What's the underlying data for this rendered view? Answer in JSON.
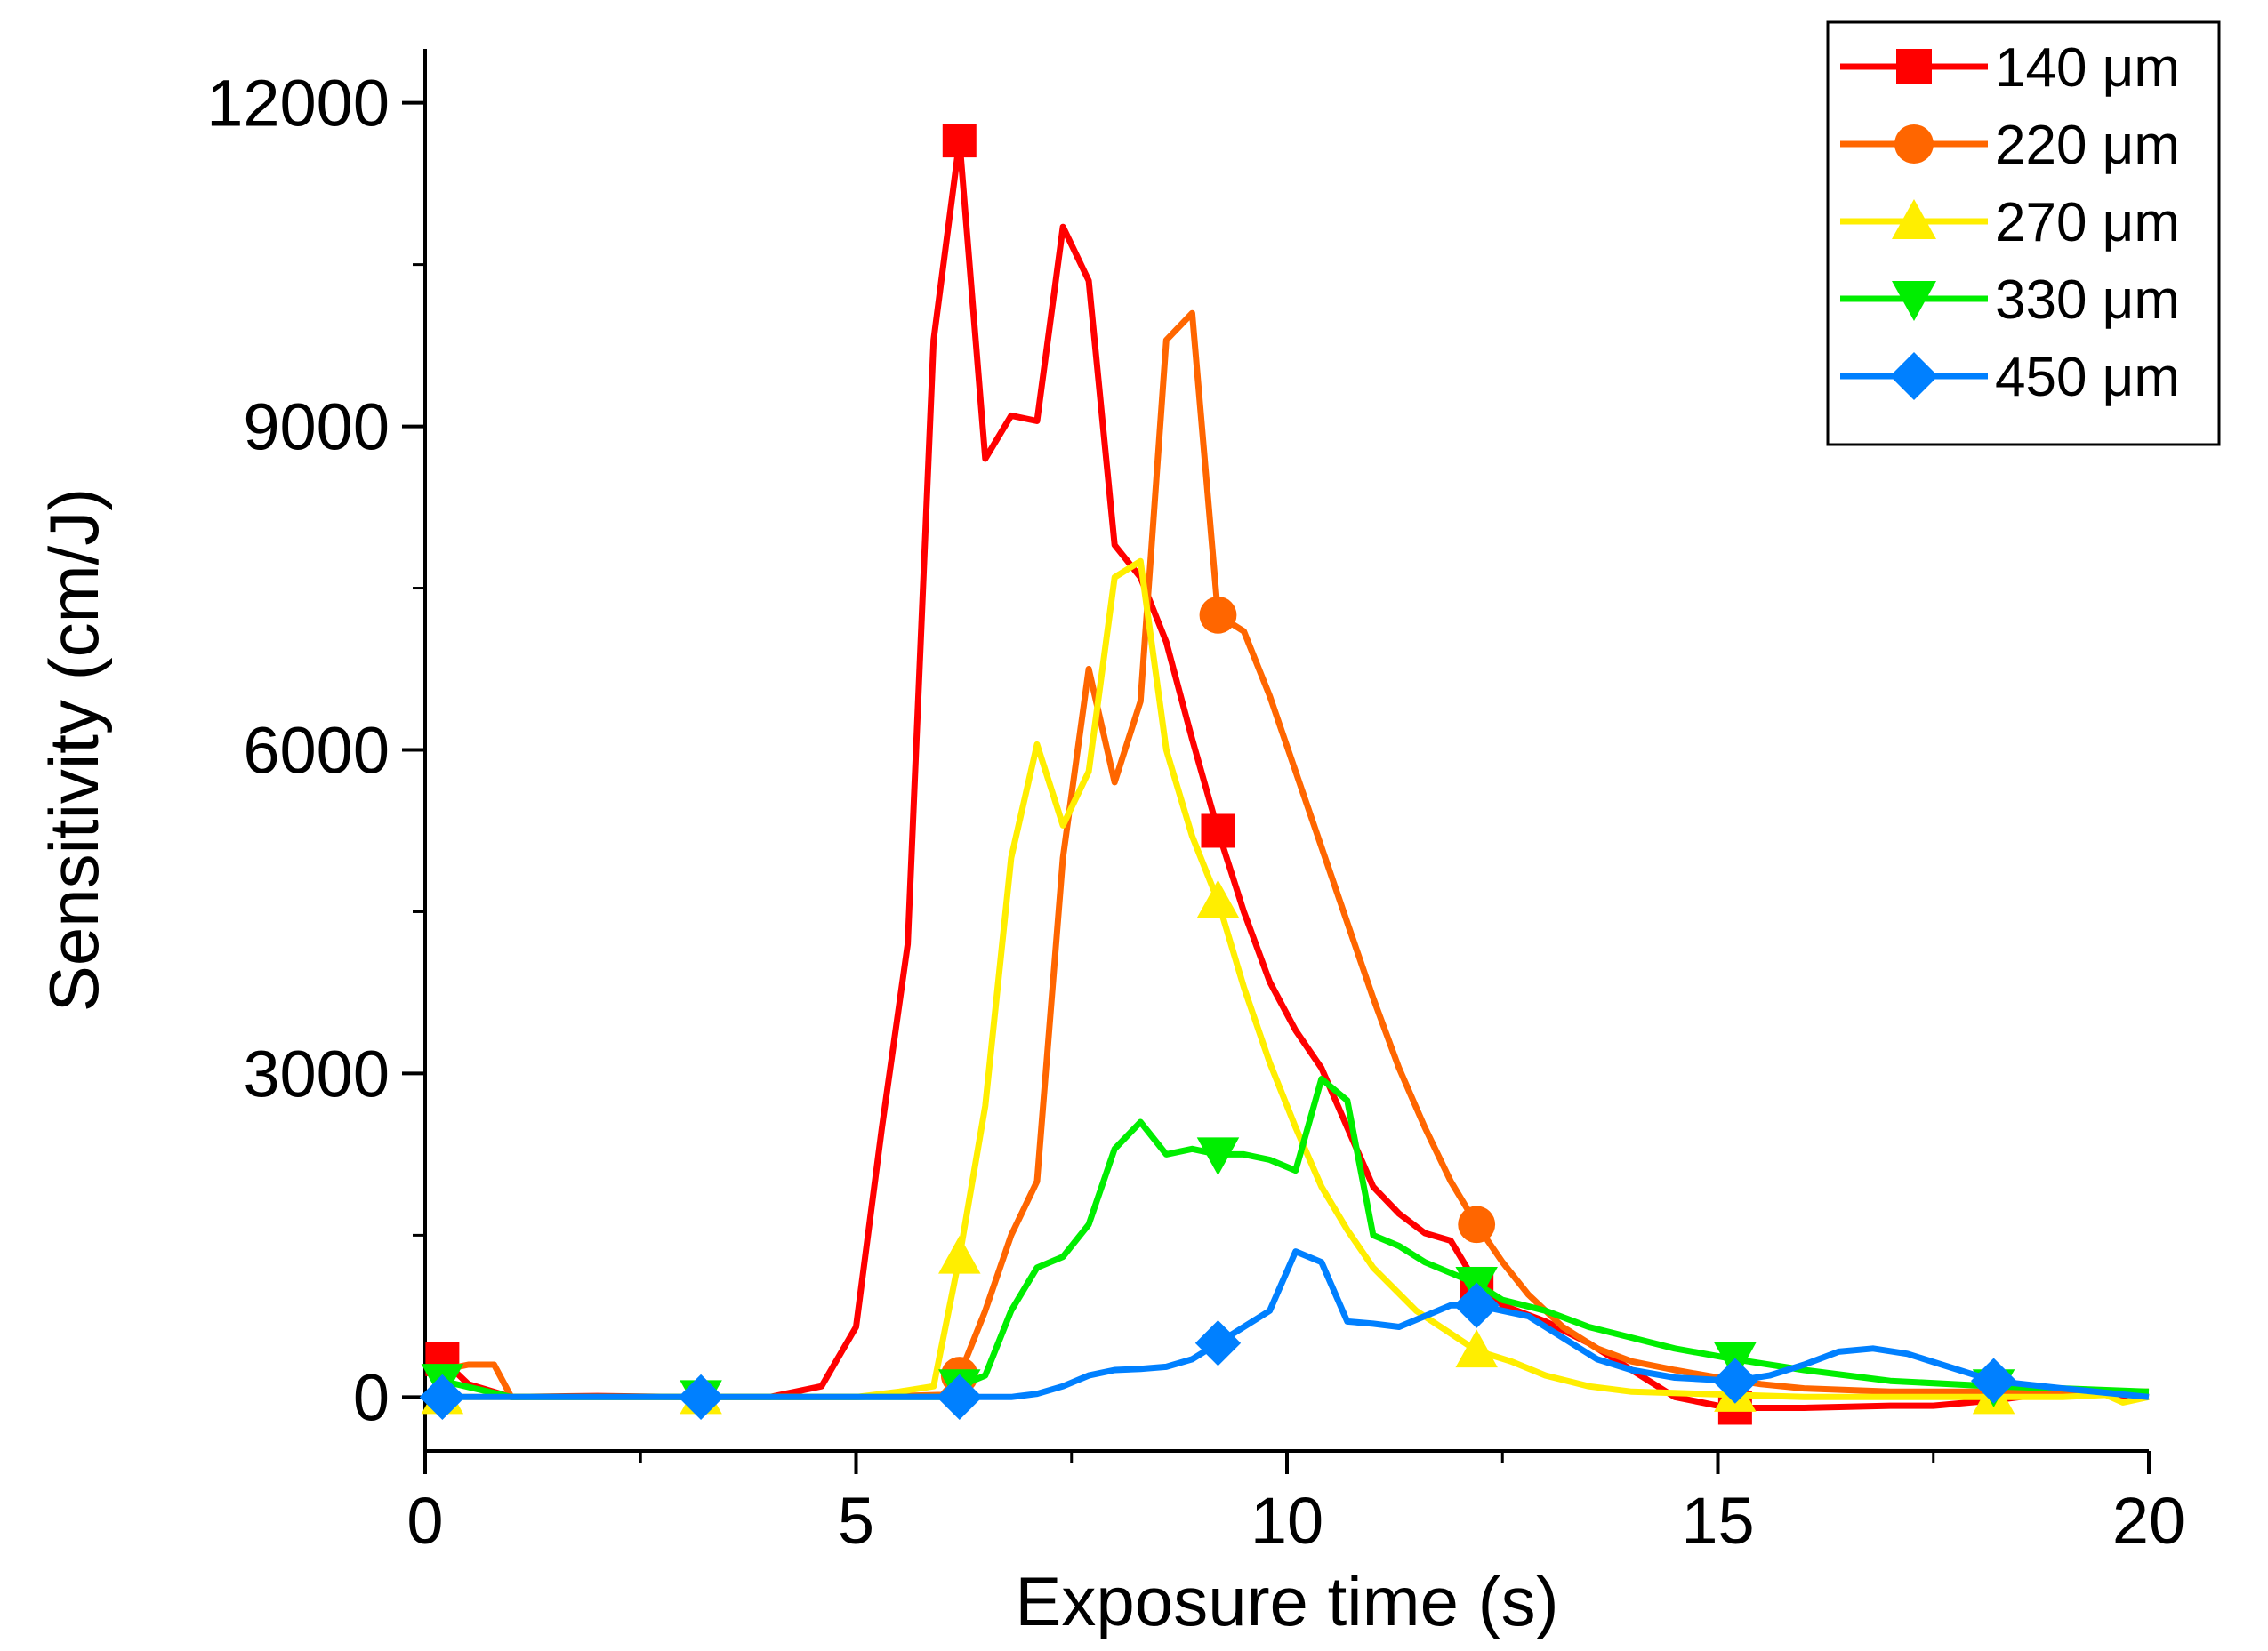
{
  "chart_data": {
    "type": "line",
    "title": "",
    "xlabel": "Exposure time (s)",
    "ylabel": "Sensitivity (cm/J)",
    "xlim": [
      0,
      20
    ],
    "ylim": [
      -500,
      12500
    ],
    "x_ticks": [
      0,
      5,
      10,
      15,
      20
    ],
    "x_tick_labels": [
      "0",
      "5",
      "10",
      "15",
      "20"
    ],
    "y_ticks": [
      0,
      3000,
      6000,
      9000,
      12000
    ],
    "y_tick_labels": [
      "0",
      "3000",
      "6000",
      "9000",
      "12000"
    ],
    "grid": false,
    "legend_position": "top-right",
    "series": [
      {
        "name": "140 μm",
        "color": "#ff0000",
        "marker": "square",
        "marker_x": [
          0.2,
          6.2,
          9.2,
          12.2,
          15.2
        ],
        "x": [
          0.2,
          0.5,
          1.0,
          2.0,
          3.0,
          4.0,
          4.6,
          5.0,
          5.3,
          5.6,
          5.9,
          6.2,
          6.5,
          6.8,
          7.1,
          7.4,
          7.7,
          8.0,
          8.3,
          8.6,
          8.9,
          9.2,
          9.5,
          9.8,
          10.1,
          10.4,
          10.7,
          11.0,
          11.3,
          11.6,
          11.9,
          12.2,
          12.5,
          13.0,
          13.5,
          14.0,
          14.5,
          15.0,
          15.2,
          16.0,
          17.0,
          17.5,
          18.2,
          19.0,
          20.0
        ],
        "y": [
          350,
          120,
          0,
          10,
          0,
          0,
          100,
          650,
          2500,
          4200,
          9800,
          11650,
          8700,
          9100,
          9050,
          10850,
          10350,
          7900,
          7600,
          7000,
          6100,
          5250,
          4500,
          3850,
          3400,
          3050,
          2500,
          1950,
          1700,
          1520,
          1450,
          1050,
          850,
          700,
          500,
          250,
          0,
          -80,
          -100,
          -100,
          -80,
          -80,
          -30,
          50,
          0
        ]
      },
      {
        "name": "220 μm",
        "color": "#ff6600",
        "marker": "circle",
        "marker_x": [
          6.2,
          9.2,
          12.2
        ],
        "x": [
          0.2,
          0.5,
          0.8,
          1.0,
          2.0,
          3.0,
          4.0,
          5.0,
          6.0,
          6.2,
          6.5,
          6.8,
          7.1,
          7.4,
          7.7,
          8.0,
          8.3,
          8.6,
          8.9,
          9.2,
          9.5,
          9.8,
          10.1,
          10.4,
          10.7,
          11.0,
          11.3,
          11.6,
          11.9,
          12.2,
          12.5,
          12.8,
          13.2,
          13.6,
          14.0,
          14.5,
          15.0,
          15.5,
          16.0,
          17.0,
          18.0,
          19.0,
          20.0
        ],
        "y": [
          250,
          300,
          300,
          0,
          0,
          0,
          0,
          0,
          20,
          200,
          800,
          1500,
          2000,
          5000,
          6750,
          5700,
          6450,
          9800,
          10050,
          7250,
          7100,
          6500,
          5800,
          5100,
          4400,
          3700,
          3050,
          2500,
          2000,
          1600,
          1250,
          950,
          650,
          450,
          330,
          250,
          180,
          120,
          80,
          50,
          50,
          50,
          50
        ]
      },
      {
        "name": "270 μm",
        "color": "#ffee00",
        "marker": "triangle-up",
        "marker_x": [
          0.2,
          3.2,
          6.2,
          9.2,
          12.2,
          15.2,
          18.2
        ],
        "x": [
          0.2,
          1.0,
          2.0,
          3.2,
          4.0,
          5.0,
          5.5,
          5.9,
          6.2,
          6.5,
          6.8,
          7.1,
          7.4,
          7.7,
          7.9,
          8.0,
          8.3,
          8.6,
          8.9,
          9.2,
          9.5,
          9.8,
          10.1,
          10.4,
          10.7,
          11.0,
          11.5,
          12.2,
          12.6,
          13.0,
          13.5,
          14.0,
          15.2,
          16.0,
          17.0,
          18.2,
          19.0,
          19.5,
          19.7,
          20.0
        ],
        "y": [
          0,
          0,
          0,
          0,
          0,
          0,
          50,
          100,
          1300,
          2700,
          5000,
          6050,
          5300,
          5800,
          7000,
          7600,
          7750,
          6000,
          5200,
          4600,
          3800,
          3100,
          2500,
          1950,
          1550,
          1200,
          800,
          430,
          330,
          200,
          100,
          50,
          20,
          0,
          0,
          0,
          0,
          20,
          -50,
          0
        ]
      },
      {
        "name": "330 μm",
        "color": "#00ee00",
        "marker": "triangle-down",
        "marker_x": [
          0.2,
          3.2,
          6.2,
          9.2,
          12.2,
          15.2,
          18.2
        ],
        "x": [
          0.2,
          1.0,
          2.0,
          3.2,
          4.0,
          5.0,
          6.0,
          6.2,
          6.5,
          6.8,
          7.1,
          7.4,
          7.7,
          8.0,
          8.3,
          8.6,
          8.9,
          9.2,
          9.5,
          9.8,
          10.1,
          10.4,
          10.7,
          11.0,
          11.3,
          11.6,
          11.9,
          12.2,
          12.5,
          13.0,
          13.5,
          14.0,
          14.5,
          15.2,
          16.0,
          17.0,
          18.2,
          19.0,
          20.0
        ],
        "y": [
          150,
          0,
          0,
          0,
          0,
          0,
          0,
          100,
          200,
          800,
          1200,
          1300,
          1600,
          2300,
          2550,
          2250,
          2300,
          2250,
          2250,
          2200,
          2100,
          2950,
          2750,
          1500,
          1400,
          1250,
          1150,
          1050,
          900,
          800,
          650,
          550,
          450,
          350,
          250,
          150,
          100,
          80,
          50
        ]
      },
      {
        "name": "450 μm",
        "color": "#0080ff",
        "marker": "diamond",
        "marker_x": [
          0.2,
          3.2,
          6.2,
          9.2,
          12.2,
          15.2,
          18.2
        ],
        "x": [
          0.2,
          1.0,
          2.0,
          3.2,
          4.0,
          5.0,
          6.2,
          6.8,
          7.1,
          7.4,
          7.7,
          8.0,
          8.3,
          8.6,
          8.9,
          9.2,
          9.5,
          9.8,
          10.1,
          10.4,
          10.7,
          11.0,
          11.3,
          11.6,
          11.9,
          12.2,
          12.5,
          12.8,
          13.2,
          13.6,
          14.0,
          14.5,
          15.2,
          15.6,
          16.0,
          16.4,
          16.8,
          17.2,
          17.6,
          18.2,
          19.0,
          20.0
        ],
        "y": [
          0,
          0,
          0,
          0,
          0,
          0,
          0,
          0,
          30,
          100,
          200,
          250,
          260,
          280,
          350,
          500,
          650,
          800,
          1350,
          1250,
          700,
          680,
          650,
          750,
          850,
          850,
          800,
          750,
          550,
          350,
          250,
          180,
          150,
          200,
          300,
          420,
          450,
          400,
          300,
          150,
          80,
          0
        ]
      }
    ]
  }
}
